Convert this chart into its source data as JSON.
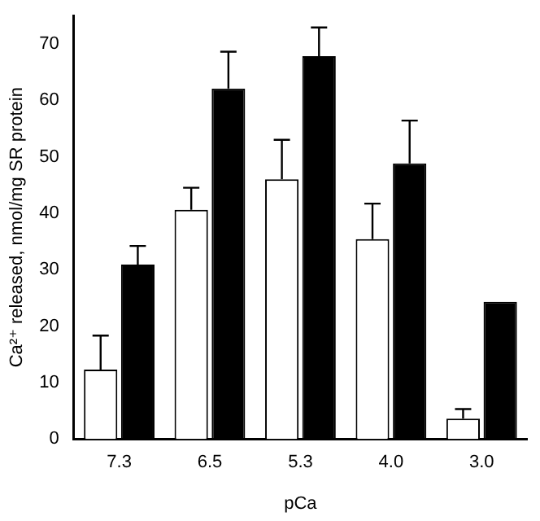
{
  "chart_data": {
    "type": "bar",
    "xlabel": "pCa",
    "ylabel": "Ca²⁺ released, nmol/mg SR protein",
    "categories": [
      "7.3",
      "6.5",
      "5.3",
      "4.0",
      "3.0"
    ],
    "series": [
      {
        "color": "#ffffff",
        "values": [
          12.3,
          40.6,
          46,
          35.4,
          3.6
        ],
        "errors": [
          [
            12.3,
            18.3
          ],
          [
            40.6,
            44.5
          ],
          [
            46,
            53
          ],
          [
            35.4,
            41.7
          ],
          [
            3.6,
            5.3
          ]
        ]
      },
      {
        "color": "#000000",
        "values": [
          30.9,
          62.1,
          67.8,
          48.8,
          24.3
        ],
        "errors": [
          [
            30.9,
            34.2
          ],
          [
            62.1,
            68.6
          ],
          [
            67.8,
            72.9
          ],
          [
            48.8,
            56.4
          ],
          null
        ]
      }
    ],
    "ylim": [
      0,
      75
    ],
    "yticks": [
      0,
      10,
      20,
      30,
      40,
      50,
      60,
      70
    ],
    "grid": false,
    "legend": false
  }
}
